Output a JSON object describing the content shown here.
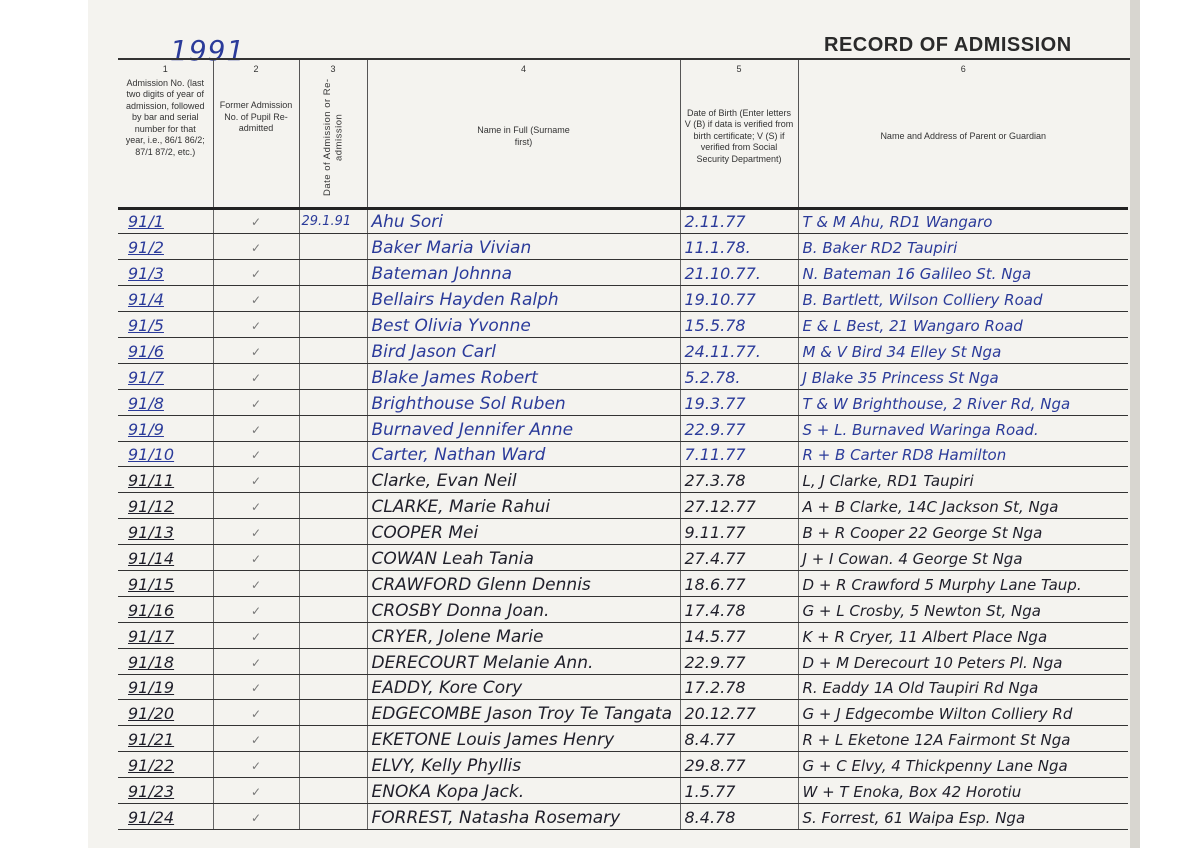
{
  "header": {
    "year": "1991",
    "title": "RECORD OF ADMISSION"
  },
  "columns": [
    {
      "number": "1",
      "label": "Admission No. (last two digits of year of admission, followed by bar and serial number for that year, i.e., 86/1 86/2; 87/1 87/2, etc.)"
    },
    {
      "number": "2",
      "label": "Former Admission No. of Pupil Re-admitted"
    },
    {
      "number": "3",
      "label": "Date of Admission or Re-admission"
    },
    {
      "number": "4",
      "label": "Name in Full (Surname first)"
    },
    {
      "number": "5",
      "label": "Date of Birth (Enter letters V (B) if data is verified from birth certificate; V (S) if verified from Social Security Department)"
    },
    {
      "number": "6",
      "label": "Name and Address of Parent or Guardian"
    }
  ],
  "rows": [
    {
      "no": "91/1",
      "former": "✓",
      "date": "29.1.91",
      "name": "Ahu Sori",
      "dob": "2.11.77",
      "guardian": "T & M Ahu, RD1 Wangaro"
    },
    {
      "no": "91/2",
      "former": "✓",
      "date": "",
      "name": "Baker Maria Vivian",
      "dob": "11.1.78.",
      "guardian": "B. Baker RD2 Taupiri"
    },
    {
      "no": "91/3",
      "former": "✓",
      "date": "",
      "name": "Bateman Johnna",
      "dob": "21.10.77.",
      "guardian": "N. Bateman 16 Galileo St. Nga"
    },
    {
      "no": "91/4",
      "former": "✓",
      "date": "",
      "name": "Bellairs Hayden Ralph",
      "dob": "19.10.77",
      "guardian": "B. Bartlett, Wilson Colliery Road"
    },
    {
      "no": "91/5",
      "former": "✓",
      "date": "",
      "name": "Best Olivia Yvonne",
      "dob": "15.5.78",
      "guardian": "E & L Best, 21 Wangaro Road"
    },
    {
      "no": "91/6",
      "former": "✓",
      "date": "",
      "name": "Bird Jason Carl",
      "dob": "24.11.77.",
      "guardian": "M & V Bird 34 Elley St Nga"
    },
    {
      "no": "91/7",
      "former": "✓",
      "date": "",
      "name": "Blake James Robert",
      "dob": "5.2.78.",
      "guardian": "J Blake 35 Princess St Nga"
    },
    {
      "no": "91/8",
      "former": "✓",
      "date": "",
      "name": "Brighthouse Sol Ruben",
      "dob": "19.3.77",
      "guardian": "T & W Brighthouse, 2 River Rd, Nga"
    },
    {
      "no": "91/9",
      "former": "✓",
      "date": "",
      "name": "Burnaved Jennifer Anne",
      "dob": "22.9.77",
      "guardian": "S + L. Burnaved Waringa Road."
    },
    {
      "no": "91/10",
      "former": "✓",
      "date": "",
      "name": "Carter, Nathan Ward",
      "dob": "7.11.77",
      "guardian": "R + B Carter RD8 Hamilton"
    },
    {
      "no": "91/11",
      "former": "✓",
      "date": "",
      "name": "Clarke, Evan Neil",
      "dob": "27.3.78",
      "guardian": "L, J Clarke, RD1 Taupiri"
    },
    {
      "no": "91/12",
      "former": "✓",
      "date": "",
      "name": "CLARKE, Marie Rahui",
      "dob": "27.12.77",
      "guardian": "A + B Clarke, 14C Jackson St, Nga"
    },
    {
      "no": "91/13",
      "former": "✓",
      "date": "",
      "name": "COOPER Mei",
      "dob": "9.11.77",
      "guardian": "B + R Cooper 22 George St Nga"
    },
    {
      "no": "91/14",
      "former": "✓",
      "date": "",
      "name": "COWAN Leah Tania",
      "dob": "27.4.77",
      "guardian": "J + I Cowan. 4 George St Nga"
    },
    {
      "no": "91/15",
      "former": "✓",
      "date": "",
      "name": "CRAWFORD Glenn Dennis",
      "dob": "18.6.77",
      "guardian": "D + R Crawford 5 Murphy Lane Taup."
    },
    {
      "no": "91/16",
      "former": "✓",
      "date": "",
      "name": "CROSBY Donna Joan.",
      "dob": "17.4.78",
      "guardian": "G + L Crosby, 5 Newton St, Nga"
    },
    {
      "no": "91/17",
      "former": "✓",
      "date": "",
      "name": "CRYER, Jolene Marie",
      "dob": "14.5.77",
      "guardian": "K + R Cryer, 11 Albert Place Nga"
    },
    {
      "no": "91/18",
      "former": "✓",
      "date": "",
      "name": "DERECOURT Melanie Ann.",
      "dob": "22.9.77",
      "guardian": "D + M Derecourt 10 Peters Pl. Nga"
    },
    {
      "no": "91/19",
      "former": "✓",
      "date": "",
      "name": "EADDY, Kore Cory",
      "dob": "17.2.78",
      "guardian": "R. Eaddy 1A Old Taupiri Rd Nga"
    },
    {
      "no": "91/20",
      "former": "✓",
      "date": "",
      "name": "EDGECOMBE Jason Troy Te Tangata",
      "dob": "20.12.77",
      "guardian": "G + J Edgecombe Wilton Colliery Rd"
    },
    {
      "no": "91/21",
      "former": "✓",
      "date": "",
      "name": "EKETONE Louis James Henry",
      "dob": "8.4.77",
      "guardian": "R + L Eketone 12A Fairmont St Nga"
    },
    {
      "no": "91/22",
      "former": "✓",
      "date": "",
      "name": "ELVY, Kelly Phyllis",
      "dob": "29.8.77",
      "guardian": "G + C Elvy, 4 Thickpenny Lane Nga"
    },
    {
      "no": "91/23",
      "former": "✓",
      "date": "",
      "name": "ENOKA Kopa Jack.",
      "dob": "1.5.77",
      "guardian": "W + T Enoka, Box 42 Horotiu"
    },
    {
      "no": "91/24",
      "former": "✓",
      "date": "",
      "name": "FORREST, Natasha Rosemary",
      "dob": "8.4.78",
      "guardian": "S. Forrest, 61 Waipa Esp. Nga"
    }
  ]
}
